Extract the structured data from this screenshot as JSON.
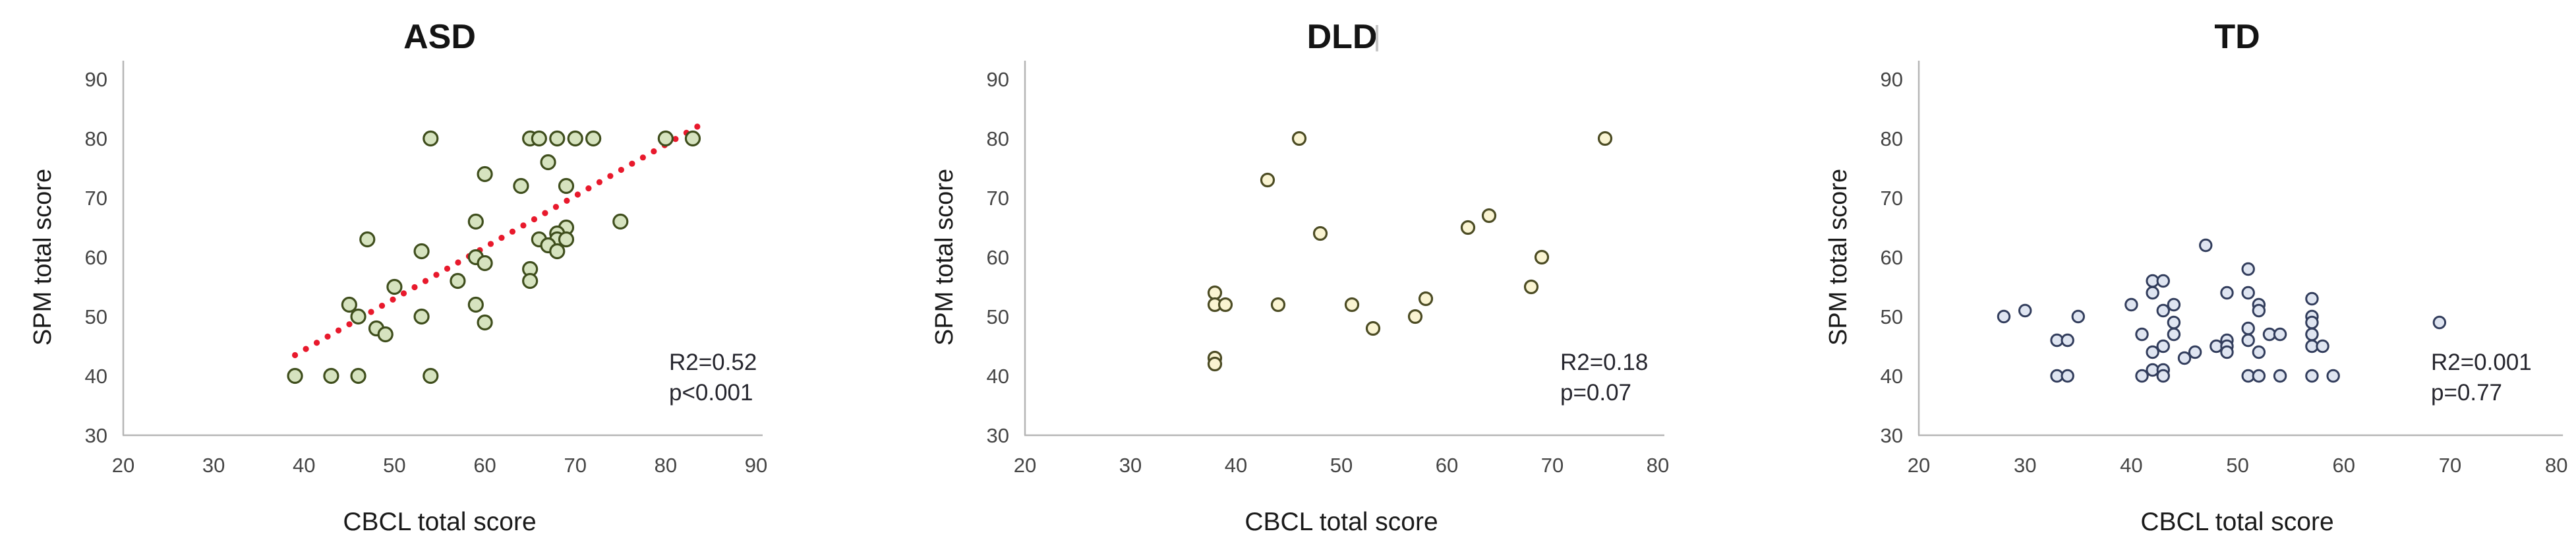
{
  "figure": {
    "background": "#ffffff"
  },
  "chart_data": [
    {
      "type": "scatter",
      "title": "ASD",
      "xlabel": "CBCL total score",
      "ylabel": "SPM total score",
      "r2_label": "R2=0.52",
      "p_label": "p<0.001",
      "xlim": [
        20,
        90
      ],
      "ylim": [
        30,
        90
      ],
      "x_ticks": [
        20,
        30,
        40,
        50,
        60,
        70,
        80,
        90
      ],
      "y_ticks": [
        30,
        40,
        50,
        60,
        70,
        80,
        90
      ],
      "grid": false,
      "legend": null,
      "marker": {
        "shape": "circle",
        "fill": "#d6e3bf",
        "stroke": "#3f4e1d",
        "radius": 10.5,
        "stroke_width": 3.2
      },
      "points": [
        [
          54,
          80
        ],
        [
          65,
          80
        ],
        [
          66,
          80
        ],
        [
          68,
          80
        ],
        [
          70,
          80
        ],
        [
          72,
          80
        ],
        [
          80,
          80
        ],
        [
          83,
          80
        ],
        [
          67,
          76
        ],
        [
          60,
          74
        ],
        [
          64,
          72
        ],
        [
          69,
          72
        ],
        [
          59,
          66
        ],
        [
          75,
          66
        ],
        [
          69,
          65
        ],
        [
          68,
          64
        ],
        [
          47,
          63
        ],
        [
          66,
          63
        ],
        [
          68,
          63
        ],
        [
          69,
          63
        ],
        [
          67,
          62
        ],
        [
          68,
          61
        ],
        [
          53,
          61
        ],
        [
          59,
          60
        ],
        [
          60,
          59
        ],
        [
          65,
          58
        ],
        [
          65,
          56
        ],
        [
          57,
          56
        ],
        [
          50,
          55
        ],
        [
          45,
          52
        ],
        [
          59,
          52
        ],
        [
          46,
          50
        ],
        [
          53,
          50
        ],
        [
          60,
          49
        ],
        [
          48,
          48
        ],
        [
          49,
          47
        ],
        [
          39,
          40
        ],
        [
          43,
          40
        ],
        [
          46,
          40
        ],
        [
          54,
          40
        ]
      ],
      "trendline": {
        "show": true,
        "style": "dotted",
        "color": "#e8192c",
        "from": [
          39,
          43.5
        ],
        "to": [
          83.5,
          82
        ]
      }
    },
    {
      "type": "scatter",
      "title": "DLD",
      "xlabel": "CBCL total score",
      "ylabel": "SPM total score",
      "r2_label": "R2=0.18",
      "p_label": "p=0.07",
      "xlim": [
        20,
        80
      ],
      "ylim": [
        30,
        90
      ],
      "x_ticks": [
        20,
        30,
        40,
        50,
        60,
        70,
        80
      ],
      "y_ticks": [
        30,
        40,
        50,
        60,
        70,
        80,
        90
      ],
      "grid": false,
      "legend": null,
      "marker": {
        "shape": "circle",
        "fill": "#faf4d2",
        "stroke": "#4c4c24",
        "radius": 9.5,
        "stroke_width": 3.2
      },
      "points": [
        [
          46,
          80
        ],
        [
          75,
          80
        ],
        [
          43,
          73
        ],
        [
          64,
          67
        ],
        [
          62,
          65
        ],
        [
          48,
          64
        ],
        [
          69,
          60
        ],
        [
          38,
          54
        ],
        [
          58,
          53
        ],
        [
          38,
          52
        ],
        [
          39,
          52
        ],
        [
          44,
          52
        ],
        [
          51,
          52
        ],
        [
          68,
          55
        ],
        [
          57,
          50
        ],
        [
          53,
          48
        ],
        [
          38,
          43
        ],
        [
          38,
          42
        ]
      ],
      "trendline": {
        "show": false
      }
    },
    {
      "type": "scatter",
      "title": "TD",
      "xlabel": "CBCL total score",
      "ylabel": "SPM total score",
      "r2_label": "R2=0.001",
      "p_label": "p=0.77",
      "xlim": [
        20,
        80
      ],
      "ylim": [
        30,
        90
      ],
      "x_ticks": [
        20,
        30,
        40,
        50,
        60,
        70,
        80
      ],
      "y_ticks": [
        30,
        40,
        50,
        60,
        70,
        80,
        90
      ],
      "grid": false,
      "legend": null,
      "marker": {
        "shape": "circle",
        "fill": "#dfe5f1",
        "stroke": "#323d5c",
        "radius": 8.7,
        "stroke_width": 3
      },
      "points": [
        [
          28,
          50
        ],
        [
          30,
          51
        ],
        [
          33,
          46
        ],
        [
          34,
          46
        ],
        [
          33,
          40
        ],
        [
          34,
          40
        ],
        [
          35,
          50
        ],
        [
          40,
          52
        ],
        [
          41,
          47
        ],
        [
          41,
          40
        ],
        [
          42,
          41
        ],
        [
          43,
          41
        ],
        [
          43,
          40
        ],
        [
          42,
          44
        ],
        [
          43,
          45
        ],
        [
          45,
          43
        ],
        [
          46,
          44
        ],
        [
          42,
          56
        ],
        [
          43,
          56
        ],
        [
          42,
          54
        ],
        [
          44,
          52
        ],
        [
          43,
          51
        ],
        [
          44,
          49
        ],
        [
          44,
          47
        ],
        [
          47,
          62
        ],
        [
          48,
          45
        ],
        [
          49,
          46
        ],
        [
          49,
          45
        ],
        [
          49,
          44
        ],
        [
          51,
          48
        ],
        [
          51,
          46
        ],
        [
          52,
          44
        ],
        [
          49,
          54
        ],
        [
          51,
          58
        ],
        [
          51,
          54
        ],
        [
          52,
          52
        ],
        [
          52,
          51
        ],
        [
          53,
          47
        ],
        [
          54,
          47
        ],
        [
          51,
          40
        ],
        [
          52,
          40
        ],
        [
          54,
          40
        ],
        [
          57,
          40
        ],
        [
          59,
          40
        ],
        [
          57,
          53
        ],
        [
          57,
          50
        ],
        [
          57,
          49
        ],
        [
          57,
          47
        ],
        [
          57,
          45
        ],
        [
          58,
          45
        ],
        [
          69,
          49
        ]
      ],
      "trendline": {
        "show": false
      }
    }
  ]
}
